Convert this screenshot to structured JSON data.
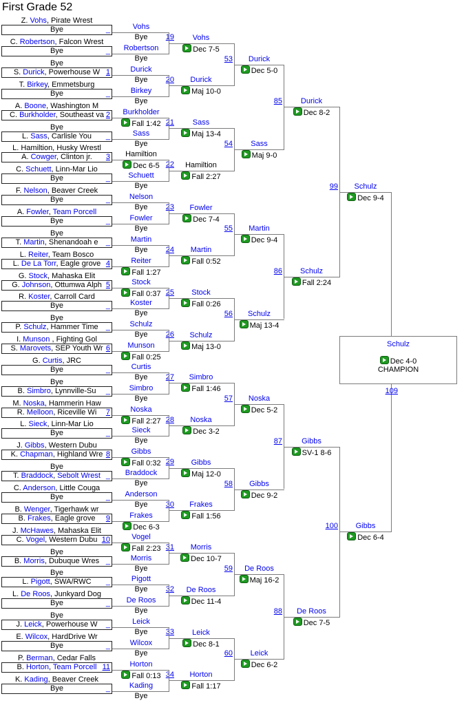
{
  "title": "First Grade 52",
  "colors": {
    "link_blue": "#0000ee",
    "play_icon_green": "#1f9a22",
    "line_gray": "#7a7a7a",
    "box_border": "#1f1f1f"
  },
  "round1": [
    {
      "top": [
        [
          "Z. ",
          0
        ],
        [
          "Vohs",
          1
        ],
        [
          ", Pirate Wrest",
          0
        ]
      ],
      "bottom": [
        [
          "Bye",
          0
        ]
      ],
      "seed": null
    },
    {
      "top": [
        [
          "C. ",
          0
        ],
        [
          "Robertson",
          1
        ],
        [
          ", Falcon Wrest",
          0
        ]
      ],
      "bottom": [
        [
          "Bye",
          0
        ]
      ],
      "seed": null
    },
    {
      "top": [
        [
          "Bye",
          0
        ]
      ],
      "bottom": [
        [
          "S. ",
          0
        ],
        [
          "Durick",
          1
        ],
        [
          ", Powerhouse W",
          0
        ]
      ],
      "seed": "1"
    },
    {
      "top": [
        [
          "T. ",
          0
        ],
        [
          "Birkey",
          1
        ],
        [
          ", Emmetsburg",
          0
        ]
      ],
      "bottom": [
        [
          "Bye",
          0
        ]
      ],
      "seed": null
    },
    {
      "top": [
        [
          "A. ",
          0
        ],
        [
          "Boone",
          1
        ],
        [
          ", Washington M",
          0
        ]
      ],
      "bottom": [
        [
          "C. ",
          0
        ],
        [
          "Burkholder",
          1
        ],
        [
          ", Southeast va",
          0
        ]
      ],
      "seed": "2"
    },
    {
      "top": [
        [
          "Bye",
          0
        ]
      ],
      "bottom": [
        [
          "L. ",
          0
        ],
        [
          "Sass",
          1
        ],
        [
          ", Carlisle You",
          0
        ]
      ],
      "seed": null
    },
    {
      "top": [
        [
          "L. Hamiltion, Husky Wrestl",
          0
        ]
      ],
      "bottom": [
        [
          "A. ",
          0
        ],
        [
          "Cowger",
          1
        ],
        [
          ", Clinton jr.",
          0
        ]
      ],
      "seed": "3"
    },
    {
      "top": [
        [
          "C. ",
          0
        ],
        [
          "Schuett",
          1
        ],
        [
          ", Linn-Mar Lio",
          0
        ]
      ],
      "bottom": [
        [
          "Bye",
          0
        ]
      ],
      "seed": null
    },
    {
      "top": [
        [
          "F. ",
          0
        ],
        [
          "Nelson",
          1
        ],
        [
          ", Beaver Creek",
          0
        ]
      ],
      "bottom": [
        [
          "Bye",
          0
        ]
      ],
      "seed": null
    },
    {
      "top": [
        [
          "A. ",
          0
        ],
        [
          "Fowler",
          1
        ],
        [
          ", ",
          0
        ],
        [
          "Team Porcell",
          1
        ]
      ],
      "bottom": [
        [
          "Bye",
          0
        ]
      ],
      "seed": null
    },
    {
      "top": [
        [
          "Bye",
          0
        ]
      ],
      "bottom": [
        [
          "T. ",
          0
        ],
        [
          "Martin",
          1
        ],
        [
          ", Shenandoah e",
          0
        ]
      ],
      "seed": null
    },
    {
      "top": [
        [
          "L. ",
          0
        ],
        [
          "Reiter",
          1
        ],
        [
          ", Team Bosco",
          0
        ]
      ],
      "bottom": [
        [
          "L. ",
          0
        ],
        [
          "De La Torr",
          1
        ],
        [
          ", Eagle grove",
          0
        ]
      ],
      "seed": "4"
    },
    {
      "top": [
        [
          "G. ",
          0
        ],
        [
          "Stock",
          1
        ],
        [
          ", Mahaska Elit",
          0
        ]
      ],
      "bottom": [
        [
          "G. ",
          0
        ],
        [
          "Johnson",
          1
        ],
        [
          ", Ottumwa Alph",
          0
        ]
      ],
      "seed": "5"
    },
    {
      "top": [
        [
          "R. ",
          0
        ],
        [
          "Koster",
          1
        ],
        [
          ", Carroll Card",
          0
        ]
      ],
      "bottom": [
        [
          "Bye",
          0
        ]
      ],
      "seed": null
    },
    {
      "top": [
        [
          "Bye",
          0
        ]
      ],
      "bottom": [
        [
          "P. ",
          0
        ],
        [
          "Schulz",
          1
        ],
        [
          ", Hammer Time",
          0
        ]
      ],
      "seed": null
    },
    {
      "top": [
        [
          "I. ",
          0
        ],
        [
          "Munson",
          1
        ],
        [
          " , Fighting Gol",
          0
        ]
      ],
      "bottom": [
        [
          "S. ",
          0
        ],
        [
          "Marovets",
          1
        ],
        [
          ", SEP Youth Wr",
          0
        ]
      ],
      "seed": "6"
    },
    {
      "top": [
        [
          "G. ",
          0
        ],
        [
          "Curtis",
          1
        ],
        [
          ", JRC",
          0
        ]
      ],
      "bottom": [
        [
          "Bye",
          0
        ]
      ],
      "seed": null
    },
    {
      "top": [
        [
          "Bye",
          0
        ]
      ],
      "bottom": [
        [
          "B. ",
          0
        ],
        [
          "Simbro",
          1
        ],
        [
          ", Lynnville-Su",
          0
        ]
      ],
      "seed": null
    },
    {
      "top": [
        [
          "M. ",
          0
        ],
        [
          "Noska",
          1
        ],
        [
          ", Hammerin Haw",
          0
        ]
      ],
      "bottom": [
        [
          "R. ",
          0
        ],
        [
          "Melloon",
          1
        ],
        [
          ", Riceville Wi",
          0
        ]
      ],
      "seed": "7"
    },
    {
      "top": [
        [
          "L. ",
          0
        ],
        [
          "Sieck",
          1
        ],
        [
          ", Linn-Mar Lio",
          0
        ]
      ],
      "bottom": [
        [
          "Bye",
          0
        ]
      ],
      "seed": null
    },
    {
      "top": [
        [
          "J. ",
          0
        ],
        [
          "Gibbs",
          1
        ],
        [
          ", Western Dubu",
          0
        ]
      ],
      "bottom": [
        [
          "K. ",
          0
        ],
        [
          "Chapman",
          1
        ],
        [
          ", Highland Wre",
          0
        ]
      ],
      "seed": "8"
    },
    {
      "top": [
        [
          "Bye",
          0
        ]
      ],
      "bottom": [
        [
          "T. ",
          0
        ],
        [
          "Braddock",
          1
        ],
        [
          ", ",
          0
        ],
        [
          "Sebolt Wrest",
          1
        ]
      ],
      "seed": null
    },
    {
      "top": [
        [
          "C. ",
          0
        ],
        [
          "Anderson",
          1
        ],
        [
          ", Little Couga",
          0
        ]
      ],
      "bottom": [
        [
          "Bye",
          0
        ]
      ],
      "seed": null
    },
    {
      "top": [
        [
          "B. ",
          0
        ],
        [
          "Wenger",
          1
        ],
        [
          ", Tigerhawk wr",
          0
        ]
      ],
      "bottom": [
        [
          "B. ",
          0
        ],
        [
          "Frakes",
          1
        ],
        [
          ", Eagle grove",
          0
        ]
      ],
      "seed": "9"
    },
    {
      "top": [
        [
          "J. ",
          0
        ],
        [
          "McHawes",
          1
        ],
        [
          ", Mahaska Elit",
          0
        ]
      ],
      "bottom": [
        [
          "C. ",
          0
        ],
        [
          "Vogel",
          1
        ],
        [
          ", Western Dubu",
          0
        ]
      ],
      "seed": "10"
    },
    {
      "top": [
        [
          "Bye",
          0
        ]
      ],
      "bottom": [
        [
          "B. ",
          0
        ],
        [
          "Morris",
          1
        ],
        [
          ", Dubuque Wres",
          0
        ]
      ],
      "seed": null
    },
    {
      "top": [
        [
          "Bye",
          0
        ]
      ],
      "bottom": [
        [
          "L. ",
          0
        ],
        [
          "Pigott",
          1
        ],
        [
          ", SWA/RWC",
          0
        ]
      ],
      "seed": null
    },
    {
      "top": [
        [
          "L. ",
          0
        ],
        [
          "De Roos",
          1
        ],
        [
          ", Junkyard Dog",
          0
        ]
      ],
      "bottom": [
        [
          "Bye",
          0
        ]
      ],
      "seed": null
    },
    {
      "top": [
        [
          "Bye",
          0
        ]
      ],
      "bottom": [
        [
          "J. ",
          0
        ],
        [
          "Leick",
          1
        ],
        [
          ", Powerhouse W",
          0
        ]
      ],
      "seed": null
    },
    {
      "top": [
        [
          "E. ",
          0
        ],
        [
          "Wilcox",
          1
        ],
        [
          ", HardDrive Wr",
          0
        ]
      ],
      "bottom": [
        [
          "Bye",
          0
        ]
      ],
      "seed": null
    },
    {
      "top": [
        [
          "P. ",
          0
        ],
        [
          "Berman",
          1
        ],
        [
          ", Cedar Falls",
          0
        ]
      ],
      "bottom": [
        [
          "B. ",
          0
        ],
        [
          "Horton",
          1
        ],
        [
          ", ",
          0
        ],
        [
          "Team Porcell",
          1
        ]
      ],
      "seed": "11"
    },
    {
      "top": [
        [
          "K. ",
          0
        ],
        [
          "Kading",
          1
        ],
        [
          ", Beaver Creek",
          0
        ]
      ],
      "bottom": [
        [
          "Bye",
          0
        ]
      ],
      "seed": null
    }
  ],
  "round2": {
    "bouts": [
      "19",
      "20",
      "21",
      "22",
      "23",
      "24",
      "25",
      "26",
      "27",
      "28",
      "29",
      "30",
      "31",
      "32",
      "33",
      "34"
    ],
    "slots": [
      {
        "name": "Vohs",
        "result": "Bye"
      },
      {
        "name": "Robertson",
        "result": "Bye"
      },
      {
        "name": "Durick",
        "result": "Bye"
      },
      {
        "name": "Birkey",
        "result": "Bye"
      },
      {
        "name": "Burkholder",
        "result": "Fall 1:42"
      },
      {
        "name": "Sass",
        "result": "Bye"
      },
      {
        "name": "Hamiltion",
        "result": "Dec 6-5",
        "black": true
      },
      {
        "name": "Schuett",
        "result": "Bye"
      },
      {
        "name": "Nelson",
        "result": "Bye"
      },
      {
        "name": "Fowler",
        "result": "Bye"
      },
      {
        "name": "Martin",
        "result": "Bye"
      },
      {
        "name": "Reiter",
        "result": "Fall 1:27"
      },
      {
        "name": "Stock",
        "result": "Fall 0:37"
      },
      {
        "name": "Koster",
        "result": "Bye"
      },
      {
        "name": "Schulz",
        "result": "Bye"
      },
      {
        "name": "Munson",
        "result": "Fall 0:25"
      },
      {
        "name": "Curtis",
        "result": "Bye"
      },
      {
        "name": "Simbro",
        "result": "Bye"
      },
      {
        "name": "Noska",
        "result": "Fall 2:27"
      },
      {
        "name": "Sieck",
        "result": "Bye"
      },
      {
        "name": "Gibbs",
        "result": "Fall 0:32"
      },
      {
        "name": "Braddock",
        "result": "Bye"
      },
      {
        "name": "Anderson",
        "result": "Bye"
      },
      {
        "name": "Frakes",
        "result": "Dec 6-3"
      },
      {
        "name": "Vogel",
        "result": "Fall 2:23"
      },
      {
        "name": "Morris",
        "result": "Bye"
      },
      {
        "name": "Pigott",
        "result": "Bye"
      },
      {
        "name": "De Roos",
        "result": "Bye"
      },
      {
        "name": "Leick",
        "result": "Bye"
      },
      {
        "name": "Wilcox",
        "result": "Bye"
      },
      {
        "name": "Horton",
        "result": "Fall 0:13"
      },
      {
        "name": "Kading",
        "result": "Bye"
      }
    ]
  },
  "round3": {
    "bouts": [
      "53",
      "54",
      "55",
      "56",
      "57",
      "58",
      "59",
      "60"
    ],
    "slots": [
      {
        "name": "Vohs",
        "result": "Dec 7-5"
      },
      {
        "name": "Durick",
        "result": "Maj 10-0"
      },
      {
        "name": "Sass",
        "result": "Maj 13-4"
      },
      {
        "name": "Hamiltion",
        "result": "Fall 2:27",
        "black": true
      },
      {
        "name": "Fowler",
        "result": "Dec 7-4"
      },
      {
        "name": "Martin",
        "result": "Fall 0:52"
      },
      {
        "name": "Stock",
        "result": "Fall 0:26"
      },
      {
        "name": "Schulz",
        "result": "Maj 13-0"
      },
      {
        "name": "Simbro",
        "result": "Fall 1:46"
      },
      {
        "name": "Noska",
        "result": "Dec 3-2"
      },
      {
        "name": "Gibbs",
        "result": "Maj 12-0"
      },
      {
        "name": "Frakes",
        "result": "Fall 1:56"
      },
      {
        "name": "Morris",
        "result": "Dec 10-7"
      },
      {
        "name": "De Roos",
        "result": "Dec 11-4"
      },
      {
        "name": "Leick",
        "result": "Dec 8-1"
      },
      {
        "name": "Horton",
        "result": "Fall 1:17"
      }
    ]
  },
  "quarterfinals": {
    "bouts": [
      "85",
      "86",
      "87",
      "88"
    ],
    "slots": [
      {
        "name": "Durick",
        "result": "Dec 5-0"
      },
      {
        "name": "Sass",
        "result": "Maj 9-0"
      },
      {
        "name": "Martin",
        "result": "Dec 9-4"
      },
      {
        "name": "Schulz",
        "result": "Maj 13-4"
      },
      {
        "name": "Noska",
        "result": "Dec 5-2"
      },
      {
        "name": "Gibbs",
        "result": "Dec 9-2"
      },
      {
        "name": "De Roos",
        "result": "Maj 16-2"
      },
      {
        "name": "Leick",
        "result": "Dec 6-2"
      }
    ]
  },
  "semifinals": {
    "bouts": [
      "99",
      "100"
    ],
    "slots": [
      {
        "name": "Durick",
        "result": "Dec 8-2"
      },
      {
        "name": "Schulz",
        "result": "Fall 2:24"
      },
      {
        "name": "Gibbs",
        "result": "SV-1 8-6"
      },
      {
        "name": "De Roos",
        "result": "Dec 7-5"
      }
    ]
  },
  "final": {
    "bout": "109",
    "slots": [
      {
        "name": "Schulz",
        "result": "Dec 9-4"
      },
      {
        "name": "Gibbs",
        "result": "Dec 6-4"
      }
    ]
  },
  "champion": {
    "name": "Schulz",
    "result": "Dec 4-0",
    "label": "CHAMPION"
  },
  "bye_label": "Bye",
  "empty_seed_link": "_"
}
